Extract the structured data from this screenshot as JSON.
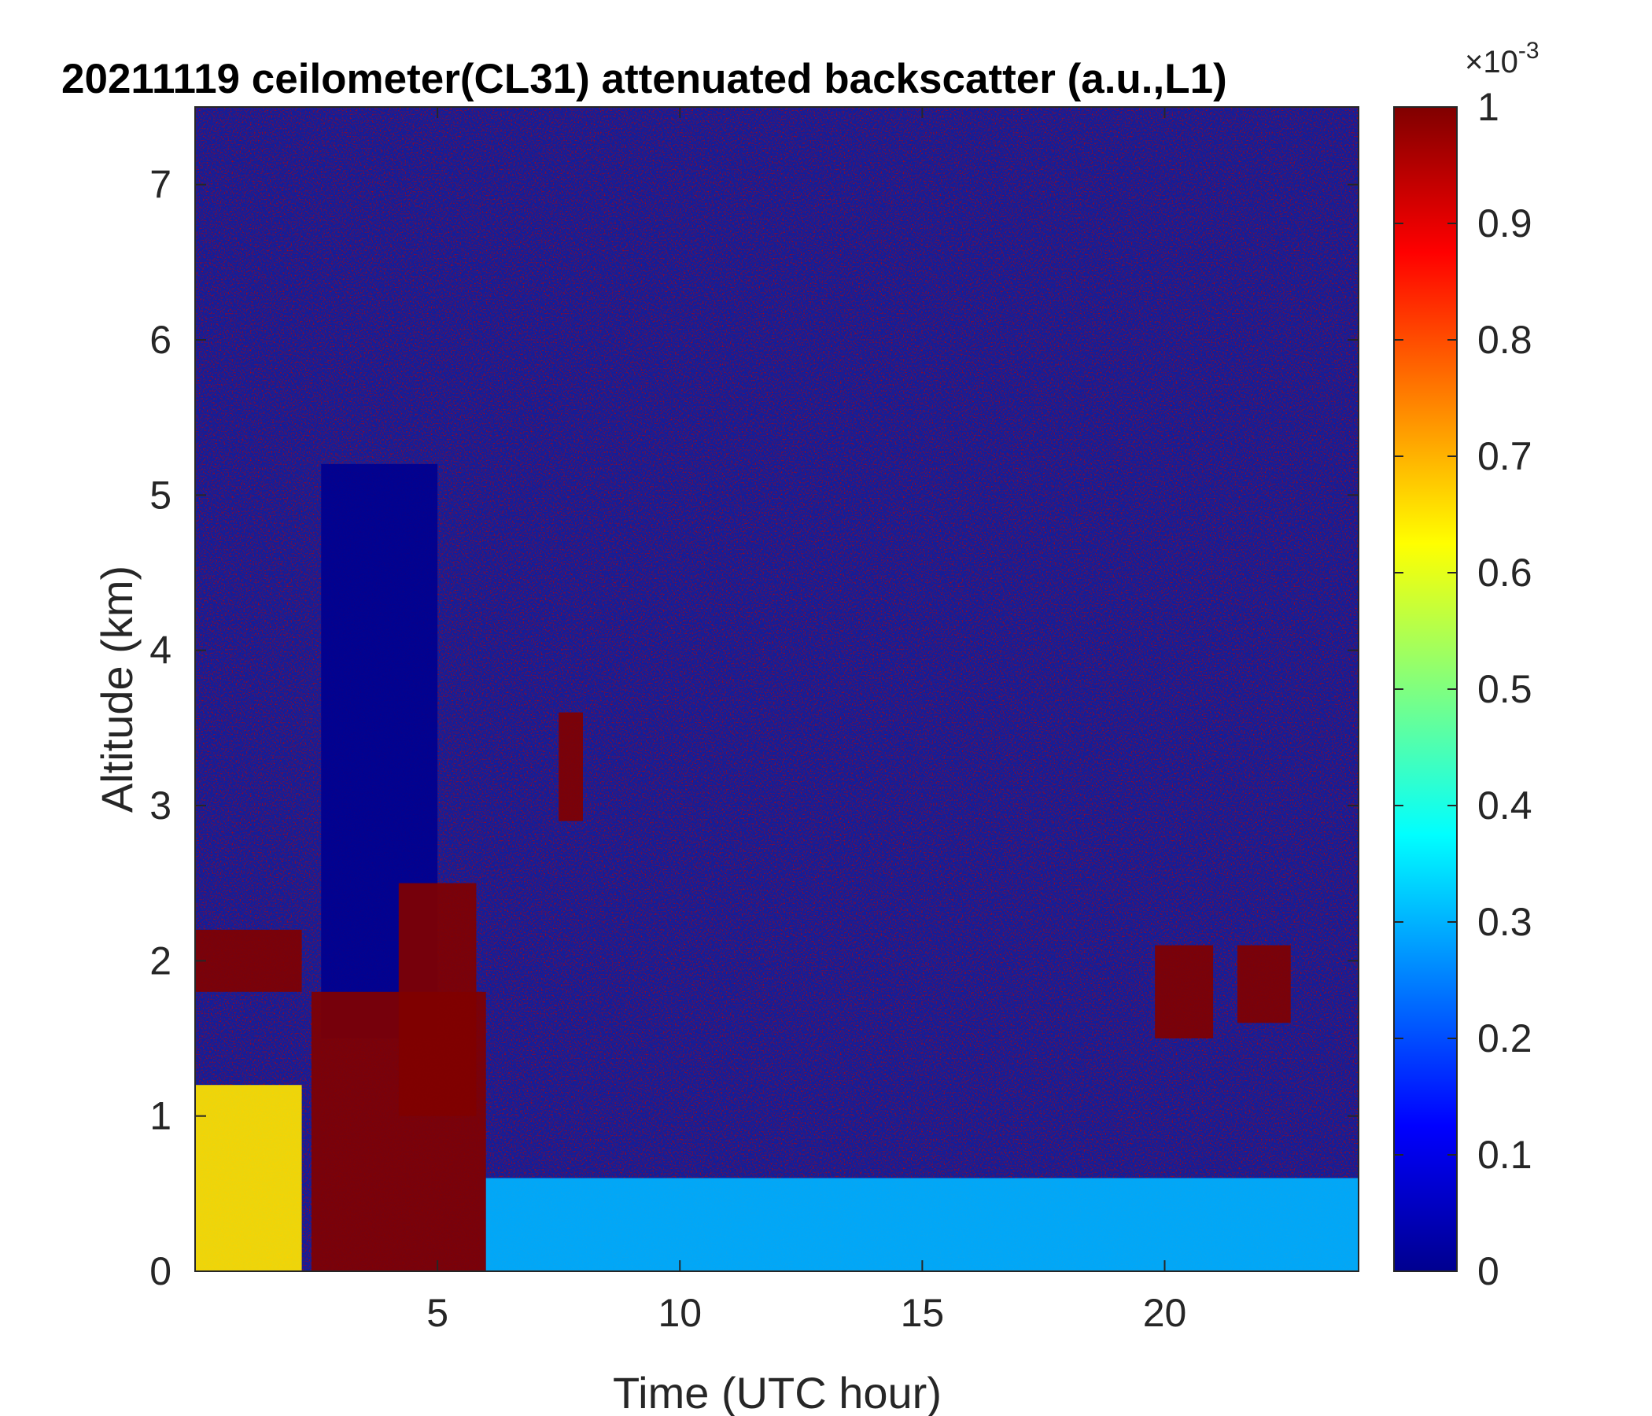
{
  "chart_data": {
    "type": "heatmap",
    "title": "20211119 ceilometer(CL31) attenuated backscatter (a.u.,L1)",
    "xlabel": "Time (UTC hour)",
    "ylabel": "Altitude (km)",
    "xlim": [
      0,
      24
    ],
    "ylim": [
      0,
      7.5
    ],
    "x_ticks": [
      "5",
      "10",
      "15",
      "20"
    ],
    "x_tick_values": [
      5,
      10,
      15,
      20
    ],
    "y_ticks": [
      "0",
      "1",
      "2",
      "3",
      "4",
      "5",
      "6",
      "7"
    ],
    "y_tick_values": [
      0,
      1,
      2,
      3,
      4,
      5,
      6,
      7
    ],
    "colorbar": {
      "colormap": "jet",
      "clim": [
        0,
        0.001
      ],
      "tick_labels": [
        "0",
        "0.1",
        "0.2",
        "0.3",
        "0.4",
        "0.5",
        "0.6",
        "0.7",
        "0.8",
        "0.9",
        "1"
      ],
      "tick_values": [
        0,
        0.1,
        0.2,
        0.3,
        0.4,
        0.5,
        0.6,
        0.7,
        0.8,
        0.9,
        1
      ],
      "exponent_base": "×10",
      "exponent_power": "-3"
    },
    "features": [
      {
        "time_range": [
          0,
          2.2
        ],
        "altitude_range": [
          0,
          1.2
        ],
        "level": 0.65
      },
      {
        "time_range": [
          0,
          2.2
        ],
        "altitude_range": [
          1.8,
          2.2
        ],
        "level": 1.0
      },
      {
        "time_range": [
          2.6,
          5.0
        ],
        "altitude_range": [
          1.5,
          5.2
        ],
        "level": 0.0
      },
      {
        "time_range": [
          2.4,
          6.0
        ],
        "altitude_range": [
          0,
          1.8
        ],
        "level": 1.0
      },
      {
        "time_range": [
          4.2,
          5.8
        ],
        "altitude_range": [
          1.0,
          2.5
        ],
        "level": 1.0
      },
      {
        "time_range": [
          7.5,
          8.0
        ],
        "altitude_range": [
          2.9,
          3.6
        ],
        "level": 1.0
      },
      {
        "time_range": [
          19.8,
          21.0
        ],
        "altitude_range": [
          1.5,
          2.1
        ],
        "level": 1.0
      },
      {
        "time_range": [
          21.5,
          22.6
        ],
        "altitude_range": [
          1.6,
          2.1
        ],
        "level": 1.0
      },
      {
        "time_range": [
          6.0,
          24.0
        ],
        "altitude_range": [
          0,
          0.6
        ],
        "level": 0.3
      }
    ]
  }
}
